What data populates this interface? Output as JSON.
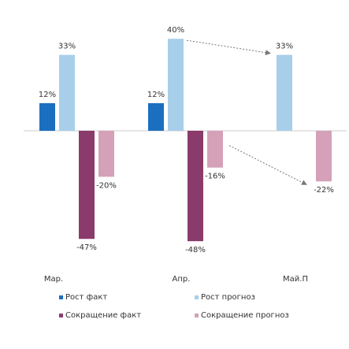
{
  "chart_data": {
    "type": "bar",
    "categories": [
      "Мар.",
      "Апр.",
      "Май.П"
    ],
    "series": [
      {
        "name": "Рост факт",
        "color": "#1B6FC0",
        "values": [
          12,
          12,
          null
        ],
        "labels": [
          "12%",
          "12%",
          ""
        ]
      },
      {
        "name": "Рост прогноз",
        "color": "#A8CFEA",
        "values": [
          33,
          40,
          33
        ],
        "labels": [
          "33%",
          "40%",
          "33%"
        ]
      },
      {
        "name": "Сокращение факт",
        "color": "#8A3B6B",
        "values": [
          -47,
          -48,
          null
        ],
        "labels": [
          "-47%",
          "-48%",
          ""
        ]
      },
      {
        "name": "Сокращение прогноз",
        "color": "#D4A1B9",
        "values": [
          -20,
          -16,
          -22
        ],
        "labels": [
          "-20%",
          "-16%",
          "-22%"
        ]
      }
    ],
    "arrows": [
      {
        "from_category": "Апр.",
        "from_series": "Рост прогноз",
        "to_category": "Май.П",
        "to_series": "Рост прогноз"
      },
      {
        "from_category": "Апр.",
        "from_series": "Сокращение прогноз",
        "to_category": "Май.П",
        "to_series": "Сокращение прогноз"
      }
    ],
    "title": "",
    "xlabel": "",
    "ylabel": "",
    "grid": false,
    "legend_position": "bottom"
  }
}
